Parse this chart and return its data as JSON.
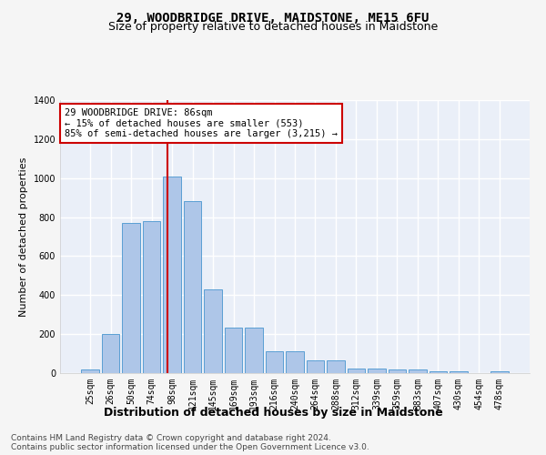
{
  "title": "29, WOODBRIDGE DRIVE, MAIDSTONE, ME15 6FU",
  "subtitle": "Size of property relative to detached houses in Maidstone",
  "xlabel": "Distribution of detached houses by size in Maidstone",
  "ylabel": "Number of detached properties",
  "categories": [
    "25sqm",
    "26sqm",
    "50sqm",
    "74sqm",
    "98sqm",
    "121sqm",
    "145sqm",
    "169sqm",
    "193sqm",
    "216sqm",
    "240sqm",
    "264sqm",
    "288sqm",
    "312sqm",
    "339sqm",
    "359sqm",
    "383sqm",
    "407sqm",
    "430sqm",
    "454sqm",
    "478sqm"
  ],
  "values": [
    20,
    200,
    770,
    780,
    1010,
    880,
    430,
    235,
    235,
    110,
    110,
    65,
    65,
    25,
    25,
    20,
    20,
    10,
    10,
    0,
    10
  ],
  "bar_color": "#aec6e8",
  "bar_edgecolor": "#5a9fd4",
  "background_color": "#eaeff8",
  "grid_color": "#ffffff",
  "vline_x": 3.78,
  "vline_color": "#cc0000",
  "annotation_text": "29 WOODBRIDGE DRIVE: 86sqm\n← 15% of detached houses are smaller (553)\n85% of semi-detached houses are larger (3,215) →",
  "annotation_box_color": "#ffffff",
  "annotation_box_edgecolor": "#cc0000",
  "ylim": [
    0,
    1400
  ],
  "yticks": [
    0,
    200,
    400,
    600,
    800,
    1000,
    1200,
    1400
  ],
  "footer_line1": "Contains HM Land Registry data © Crown copyright and database right 2024.",
  "footer_line2": "Contains public sector information licensed under the Open Government Licence v3.0.",
  "title_fontsize": 10,
  "subtitle_fontsize": 9,
  "xlabel_fontsize": 9,
  "ylabel_fontsize": 8,
  "tick_fontsize": 7,
  "annotation_fontsize": 7.5,
  "footer_fontsize": 6.5
}
